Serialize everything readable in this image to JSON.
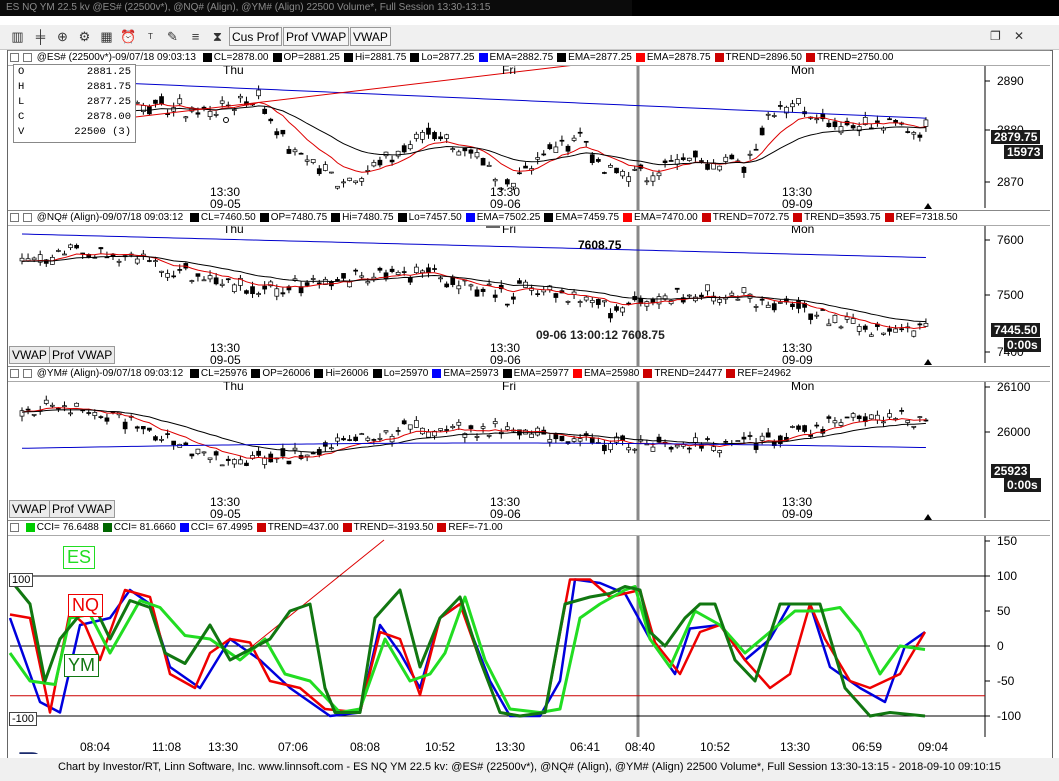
{
  "window": {
    "title": "ES NQ YM 22.5 kv @ES# (22500v*), @NQ# (Align), @YM# (Align) 22500 Volume*, Full Session 13:30-13:15"
  },
  "toolbar": {
    "icons": [
      "bar-chart-icon",
      "candlestick-icon",
      "zoom-icon",
      "gear-icon",
      "calendar-icon",
      "alarm-icon",
      "title-icon",
      "draw-icon",
      "hourglass-icon"
    ],
    "cus_prof_label": "Cus Prof",
    "prof_vwap_label": "Prof VWAP",
    "vwap_label": "VWAP"
  },
  "panes": {
    "es": {
      "header_symbol": "@ES# (22500v*)-09/07/18 09:03:13",
      "header_fields": [
        {
          "text": "CL=2878.00",
          "color": "#000000"
        },
        {
          "text": "OP=2881.25",
          "color": "#000000"
        },
        {
          "text": "Hi=2881.75",
          "color": "#000000"
        },
        {
          "text": "Lo=2877.25",
          "color": "#000000"
        },
        {
          "text": "EMA=2882.75",
          "color": "#0000ff"
        },
        {
          "text": "EMA=2877.25",
          "color": "#000000"
        },
        {
          "text": "EMA=2878.75",
          "color": "#ff0000"
        },
        {
          "text": "TREND=2896.50",
          "color": "#cc0000"
        },
        {
          "text": "TREND=2750.00",
          "color": "#cc0000"
        }
      ],
      "ohlc": [
        {
          "k": "O",
          "v": "2881.25"
        },
        {
          "k": "H",
          "v": "2881.75"
        },
        {
          "k": "L",
          "v": "2877.25"
        },
        {
          "k": "C",
          "v": "2878.00"
        },
        {
          "k": "V",
          "v": "22500  (3)"
        }
      ],
      "y_ticks": [
        "2890",
        "2880",
        "2870"
      ],
      "last_price": "2879.75",
      "volume_tag": "15973",
      "day_labels": [
        "Thu",
        "Fri",
        "Mon"
      ],
      "time_labels": [
        {
          "t": "13:30",
          "d": "09-05"
        },
        {
          "t": "13:30",
          "d": "09-06"
        },
        {
          "t": "13:30",
          "d": "09-09"
        }
      ]
    },
    "nq": {
      "header_symbol": "@NQ# (Align)-09/07/18 09:03:12",
      "header_fields": [
        {
          "text": "CL=7460.50",
          "color": "#000000"
        },
        {
          "text": "OP=7480.75",
          "color": "#000000"
        },
        {
          "text": "Hi=7480.75",
          "color": "#000000"
        },
        {
          "text": "Lo=7457.50",
          "color": "#000000"
        },
        {
          "text": "EMA=7502.25",
          "color": "#0000ff"
        },
        {
          "text": "EMA=7459.75",
          "color": "#000000"
        },
        {
          "text": "EMA=7470.00",
          "color": "#ff0000"
        },
        {
          "text": "TREND=7072.75",
          "color": "#cc0000"
        },
        {
          "text": "TREND=3593.75",
          "color": "#cc0000"
        },
        {
          "text": "REF=7318.50",
          "color": "#cc0000"
        }
      ],
      "y_ticks": [
        "7600",
        "7500",
        "7400"
      ],
      "last_price": "7445.50",
      "timer": "0:00s",
      "high_label": "7608.75",
      "crosshair_label": "09-06 13:00:12  7608.75",
      "day_labels": [
        "Thu",
        "Fri",
        "Mon"
      ],
      "time_labels": [
        {
          "t": "13:30",
          "d": "09-05"
        },
        {
          "t": "13:30",
          "d": "09-06"
        },
        {
          "t": "13:30",
          "d": "09-09"
        }
      ],
      "vwap_label": "VWAP",
      "prof_vwap_label": "Prof VWAP"
    },
    "ym": {
      "header_symbol": "@YM# (Align)-09/07/18 09:03:12",
      "header_fields": [
        {
          "text": "CL=25976",
          "color": "#000000"
        },
        {
          "text": "OP=26006",
          "color": "#000000"
        },
        {
          "text": "Hi=26006",
          "color": "#000000"
        },
        {
          "text": "Lo=25970",
          "color": "#000000"
        },
        {
          "text": "EMA=25973",
          "color": "#0000ff"
        },
        {
          "text": "EMA=25977",
          "color": "#000000"
        },
        {
          "text": "EMA=25980",
          "color": "#ff0000"
        },
        {
          "text": "TREND=24477",
          "color": "#cc0000"
        },
        {
          "text": "REF=24962",
          "color": "#cc0000"
        }
      ],
      "y_ticks": [
        "26100",
        "26000"
      ],
      "last_price": "25923",
      "timer": "0:00s",
      "day_labels": [
        "Thu",
        "Fri",
        "Mon"
      ],
      "time_labels": [
        {
          "t": "13:30",
          "d": "09-05"
        },
        {
          "t": "13:30",
          "d": "09-06"
        },
        {
          "t": "13:30",
          "d": "09-09"
        }
      ],
      "vwap_label": "VWAP",
      "prof_vwap_label": "Prof VWAP"
    },
    "cci": {
      "header_fields": [
        {
          "text": "CCI= 76.6488",
          "color": "#00cc00"
        },
        {
          "text": "CCI= 81.6660",
          "color": "#006600"
        },
        {
          "text": "CCI= 67.4995",
          "color": "#0000ff"
        },
        {
          "text": "TREND=437.00",
          "color": "#cc0000"
        },
        {
          "text": "TREND=-3193.50",
          "color": "#cc0000"
        },
        {
          "text": "REF=-71.00",
          "color": "#cc0000"
        }
      ],
      "y_ticks": [
        "150",
        "100",
        "50",
        "0",
        "-50",
        "-100"
      ],
      "left_labels": [
        "100",
        "-100"
      ],
      "legend": {
        "es": "ES",
        "nq": "NQ",
        "ym": "YM"
      }
    }
  },
  "x_axis": [
    "08:04",
    "11:08",
    "13:30",
    "07:06",
    "08:08",
    "10:52",
    "13:30",
    "06:41",
    "08:40",
    "10:52",
    "13:30",
    "06:59",
    "09:04"
  ],
  "footer": {
    "text": "Chart by Investor/RT, Linn Software, Inc. www.linnsoft.com - ES NQ YM  22.5 kv: @ES# (22500v*), @NQ# (Align), @YM# (Align) 22500 Volume*, Full Session 13:30-13:15 - 2018-09-10 09:10:15"
  },
  "colors": {
    "ema_slow": "#0000cc",
    "ema_mid": "#000000",
    "ema_fast": "#dd0000",
    "cci_es": "#22dd22",
    "cci_nq": "#ee0000",
    "cci_ym": "#117711",
    "cci_blue": "#0000dd"
  }
}
